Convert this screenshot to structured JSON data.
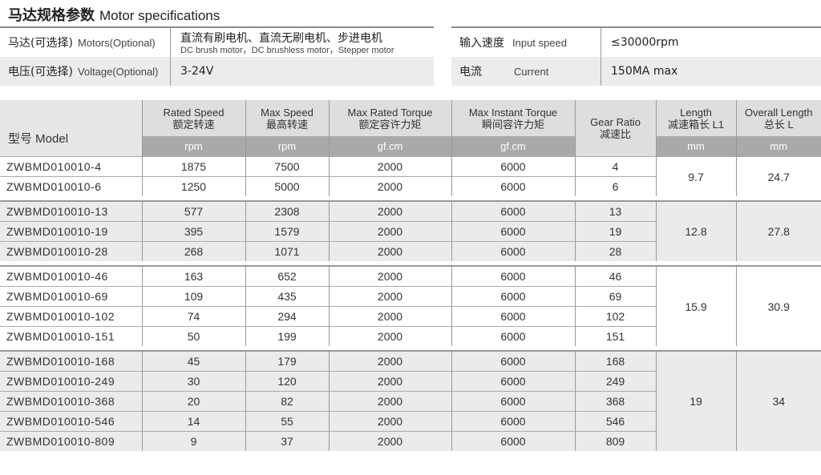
{
  "title": {
    "zh": "马达规格参数",
    "en": "Motor specifications"
  },
  "specs_left": [
    {
      "label_zh": "马达(可选择)",
      "label_en": "Motors(Optional)",
      "value": "直流有刷电机、直流无刷电机、步进电机",
      "value_sub": "DC brush motor，DC brushless motor，Stepper motor"
    },
    {
      "label_zh": "电压(可选择)",
      "label_en": "Voltage(Optional)",
      "value": "3-24V"
    }
  ],
  "specs_right": [
    {
      "label_zh": "输入速度",
      "label_en": "Input speed",
      "value": "≤30000rpm"
    },
    {
      "label_zh": "电流",
      "label_en": "Current",
      "value": "150MA max"
    }
  ],
  "table": {
    "headers": {
      "model": "型号 Model",
      "rated_speed": {
        "en": "Rated Speed",
        "zh": "额定转速",
        "unit": "rpm"
      },
      "max_speed": {
        "en": "Max Speed",
        "zh": "最高转速",
        "unit": "rpm"
      },
      "max_rated_torque": {
        "en": "Max Rated Torque",
        "zh": "额定容许力矩",
        "unit": "gf.cm"
      },
      "max_instant_torque": {
        "en": "Max Instant Torque",
        "zh": "瞬间容许力矩",
        "unit": "gf.cm"
      },
      "gear_ratio": {
        "en": "Gear Ratio",
        "zh": "减速比"
      },
      "length_l1": {
        "en": "Length",
        "zh": "减速箱长 L1",
        "unit": "mm"
      },
      "overall_length": {
        "en": "Overall Length",
        "zh": "总长 L",
        "unit": "mm"
      }
    },
    "groups": [
      {
        "length_l1": "9.7",
        "overall_length": "24.7",
        "rows": [
          {
            "model": "ZWBMD010010-4",
            "rated_speed": "1875",
            "max_speed": "7500",
            "max_rated_torque": "2000",
            "max_instant_torque": "6000",
            "gear_ratio": "4"
          },
          {
            "model": "ZWBMD010010-6",
            "rated_speed": "1250",
            "max_speed": "5000",
            "max_rated_torque": "2000",
            "max_instant_torque": "6000",
            "gear_ratio": "6"
          }
        ]
      },
      {
        "length_l1": "12.8",
        "overall_length": "27.8",
        "rows": [
          {
            "model": "ZWBMD010010-13",
            "rated_speed": "577",
            "max_speed": "2308",
            "max_rated_torque": "2000",
            "max_instant_torque": "6000",
            "gear_ratio": "13"
          },
          {
            "model": "ZWBMD010010-19",
            "rated_speed": "395",
            "max_speed": "1579",
            "max_rated_torque": "2000",
            "max_instant_torque": "6000",
            "gear_ratio": "19"
          },
          {
            "model": "ZWBMD010010-28",
            "rated_speed": "268",
            "max_speed": "1071",
            "max_rated_torque": "2000",
            "max_instant_torque": "6000",
            "gear_ratio": "28"
          }
        ]
      },
      {
        "length_l1": "15.9",
        "overall_length": "30.9",
        "rows": [
          {
            "model": "ZWBMD010010-46",
            "rated_speed": "163",
            "max_speed": "652",
            "max_rated_torque": "2000",
            "max_instant_torque": "6000",
            "gear_ratio": "46"
          },
          {
            "model": "ZWBMD010010-69",
            "rated_speed": "109",
            "max_speed": "435",
            "max_rated_torque": "2000",
            "max_instant_torque": "6000",
            "gear_ratio": "69"
          },
          {
            "model": "ZWBMD010010-102",
            "rated_speed": "74",
            "max_speed": "294",
            "max_rated_torque": "2000",
            "max_instant_torque": "6000",
            "gear_ratio": "102"
          },
          {
            "model": "ZWBMD010010-151",
            "rated_speed": "50",
            "max_speed": "199",
            "max_rated_torque": "2000",
            "max_instant_torque": "6000",
            "gear_ratio": "151"
          }
        ]
      },
      {
        "length_l1": "19",
        "overall_length": "34",
        "rows": [
          {
            "model": "ZWBMD010010-168",
            "rated_speed": "45",
            "max_speed": "179",
            "max_rated_torque": "2000",
            "max_instant_torque": "6000",
            "gear_ratio": "168"
          },
          {
            "model": "ZWBMD010010-249",
            "rated_speed": "30",
            "max_speed": "120",
            "max_rated_torque": "2000",
            "max_instant_torque": "6000",
            "gear_ratio": "249"
          },
          {
            "model": "ZWBMD010010-368",
            "rated_speed": "20",
            "max_speed": "82",
            "max_rated_torque": "2000",
            "max_instant_torque": "6000",
            "gear_ratio": "368"
          },
          {
            "model": "ZWBMD010010-546",
            "rated_speed": "14",
            "max_speed": "55",
            "max_rated_torque": "2000",
            "max_instant_torque": "6000",
            "gear_ratio": "546"
          },
          {
            "model": "ZWBMD010010-809",
            "rated_speed": "9",
            "max_speed": "37",
            "max_rated_torque": "2000",
            "max_instant_torque": "6000",
            "gear_ratio": "809"
          }
        ]
      }
    ]
  }
}
